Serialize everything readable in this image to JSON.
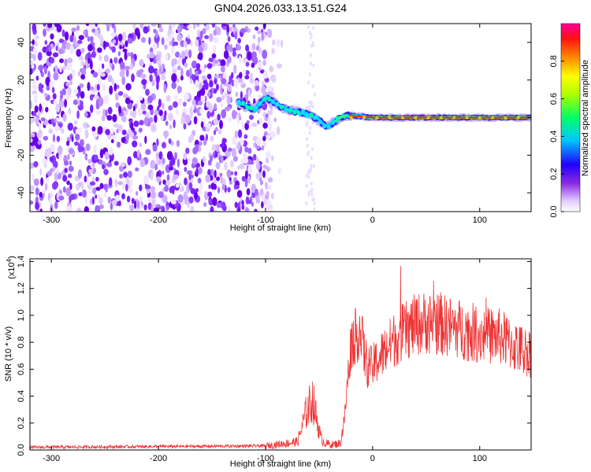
{
  "chart_data": [
    {
      "type": "heatmap",
      "title": "GN04.2026.033.13.51.G24",
      "xlabel": "Height of straight line (km)",
      "ylabel": "Frequency (Hz)",
      "xlim": [
        -320,
        148
      ],
      "ylim": [
        -50,
        50
      ],
      "xticks": [
        -300,
        -200,
        -100,
        0,
        100
      ],
      "yticks": [
        -40,
        -20,
        0,
        20,
        40
      ],
      "colorbar": {
        "label": "Normalized spectral amplitude",
        "range": [
          0,
          1
        ],
        "ticks": [
          0.0,
          0.2,
          0.4,
          0.6,
          0.8
        ],
        "tick_labels": [
          "0.0",
          "0.2",
          "0.4",
          "0.6",
          "0.8"
        ],
        "colors": [
          "#ffffff",
          "#8a2be2",
          "#0000ff",
          "#00ffff",
          "#00ff00",
          "#ffff00",
          "#ff8800",
          "#ff0000",
          "#ff00aa"
        ]
      },
      "noise_region": {
        "x": [
          -320,
          -98
        ],
        "y": [
          -50,
          50
        ]
      },
      "ridge": {
        "x": [
          -125,
          -110,
          -100,
          -92,
          -85,
          -78,
          -70,
          -62,
          -55,
          -48,
          -44,
          -40,
          -35,
          -30,
          -25,
          -20,
          -10,
          0,
          20,
          40,
          60,
          80,
          100,
          120,
          148
        ],
        "y": [
          8,
          4,
          11,
          8,
          5,
          4,
          3,
          2,
          0,
          -2,
          -5,
          -4,
          -2,
          0,
          1,
          1,
          0.5,
          0,
          0,
          0,
          0,
          0,
          0,
          0,
          0
        ]
      }
    },
    {
      "type": "line",
      "title": "",
      "xlabel": "Height of straight line (km)",
      "ylabel": "SNR (10 * v/v)",
      "scale_label": "(x10",
      "scale_exp": "4",
      "scale_close": ")",
      "xlim": [
        -320,
        148
      ],
      "ylim": [
        0,
        1.42
      ],
      "xticks": [
        -300,
        -200,
        -100,
        0,
        100
      ],
      "yticks": [
        0.0,
        0.2,
        0.4,
        0.6,
        0.8,
        1.0,
        1.2,
        1.4
      ],
      "ytick_labels": [
        "0.0",
        "0.2",
        "0.4",
        "0.6",
        "0.8",
        "1.0",
        "1.2",
        "1.4"
      ],
      "color": "#ee3333",
      "series": [
        {
          "x": [
            -320,
            -100,
            -70,
            -62,
            -56,
            -52,
            -48,
            -44,
            -38,
            -30,
            -26,
            -23,
            -20,
            -15,
            -12,
            -8,
            -4,
            0,
            10,
            20,
            30,
            40,
            50,
            60,
            70,
            80,
            90,
            100,
            110,
            120,
            130,
            140,
            148
          ],
          "y": [
            0.02,
            0.03,
            0.06,
            0.28,
            0.38,
            0.22,
            0.08,
            0.05,
            0.04,
            0.05,
            0.25,
            0.55,
            0.8,
            0.85,
            0.9,
            0.72,
            0.6,
            0.62,
            0.72,
            0.82,
            0.88,
            0.93,
            0.95,
            0.94,
            0.92,
            0.9,
            0.88,
            0.86,
            0.85,
            0.84,
            0.78,
            0.74,
            0.72
          ]
        }
      ]
    }
  ]
}
